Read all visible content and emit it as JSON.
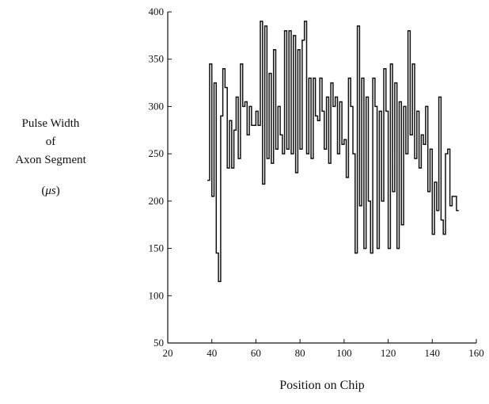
{
  "chart_data": {
    "type": "line",
    "title": "",
    "ylabel": [
      "Pulse Width",
      "of",
      "Axon Segment"
    ],
    "yunit_open": "(",
    "yunit_symbol": "μs",
    "yunit_close": ")",
    "xlabel": "Position on Chip",
    "xlim": [
      20,
      160
    ],
    "ylim": [
      50,
      400
    ],
    "xticks": [
      20,
      40,
      60,
      80,
      100,
      120,
      140,
      160
    ],
    "yticks": [
      50,
      100,
      150,
      200,
      250,
      300,
      350,
      400
    ],
    "grid": false,
    "legend": "none",
    "line_color": "#111111",
    "series": [
      {
        "x": [
          38,
          39,
          40,
          41,
          42,
          43,
          44,
          45,
          46,
          47,
          48,
          49,
          50,
          51,
          52,
          53,
          54,
          55,
          56,
          57,
          58,
          59,
          60,
          61,
          62,
          63,
          64,
          65,
          66,
          67,
          68,
          69,
          70,
          71,
          72,
          73,
          74,
          75,
          76,
          77,
          78,
          79,
          80,
          81,
          82,
          83,
          84,
          85,
          86,
          87,
          88,
          89,
          90,
          91,
          92,
          93,
          94,
          95,
          96,
          97,
          98,
          99,
          100,
          101,
          102,
          103,
          104,
          105,
          106,
          107,
          108,
          109,
          110,
          111,
          112,
          113,
          114,
          115,
          116,
          117,
          118,
          119,
          120,
          121,
          122,
          123,
          124,
          125,
          126,
          127,
          128,
          129,
          130,
          131,
          132,
          133,
          134,
          135,
          136,
          137,
          138,
          139,
          140,
          141,
          142,
          143,
          144,
          145,
          146,
          147,
          148,
          149,
          150,
          151
        ],
        "y": [
          222,
          345,
          205,
          325,
          145,
          115,
          290,
          340,
          320,
          235,
          285,
          235,
          275,
          310,
          245,
          345,
          300,
          305,
          270,
          300,
          280,
          280,
          295,
          280,
          390,
          218,
          385,
          245,
          335,
          240,
          360,
          255,
          300,
          270,
          250,
          380,
          255,
          380,
          250,
          375,
          230,
          360,
          255,
          370,
          390,
          250,
          330,
          245,
          330,
          290,
          285,
          330,
          295,
          255,
          310,
          240,
          325,
          300,
          310,
          250,
          305,
          260,
          265,
          225,
          330,
          300,
          250,
          145,
          385,
          195,
          330,
          150,
          310,
          200,
          145,
          330,
          300,
          150,
          295,
          200,
          340,
          295,
          150,
          345,
          210,
          325,
          150,
          305,
          175,
          300,
          250,
          380,
          270,
          345,
          245,
          295,
          235,
          270,
          260,
          300,
          210,
          255,
          165,
          220,
          190,
          310,
          180,
          165,
          250,
          255,
          195,
          205,
          205,
          190
        ]
      }
    ]
  }
}
